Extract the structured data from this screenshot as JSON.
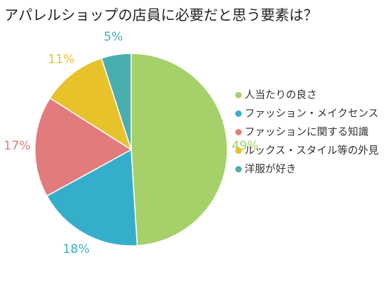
{
  "chart_data": {
    "type": "pie",
    "title": "アパレルショップの店員に必要だと思う要素は？",
    "unit": "%",
    "categories": [
      "人当たりの良さ",
      "ファッション・メイクセンス",
      "ファッションに関する知識",
      "ルックス・スタイル等の外見",
      "洋服が好き"
    ],
    "values": [
      49,
      18,
      17,
      11,
      5
    ],
    "data_labels": [
      "49%",
      "18%",
      "17%",
      "11%",
      "5%"
    ],
    "colors": [
      "#a6d06a",
      "#35aecb",
      "#e27b7b",
      "#e8c22b",
      "#4aaeae"
    ],
    "start_angle": "top",
    "direction": "clockwise",
    "legend_position": "right"
  },
  "legend": {
    "items": [
      {
        "label": "人当たりの良さ",
        "color": "#a6d06a"
      },
      {
        "label": "ファッション・メイクセンス",
        "color": "#35aecb"
      },
      {
        "label": "ファッションに関する知識",
        "color": "#e27b7b"
      },
      {
        "label": "ルックス・スタイル等の外見",
        "color": "#e8c22b"
      },
      {
        "label": "洋服が好き",
        "color": "#4aaeae"
      }
    ]
  }
}
